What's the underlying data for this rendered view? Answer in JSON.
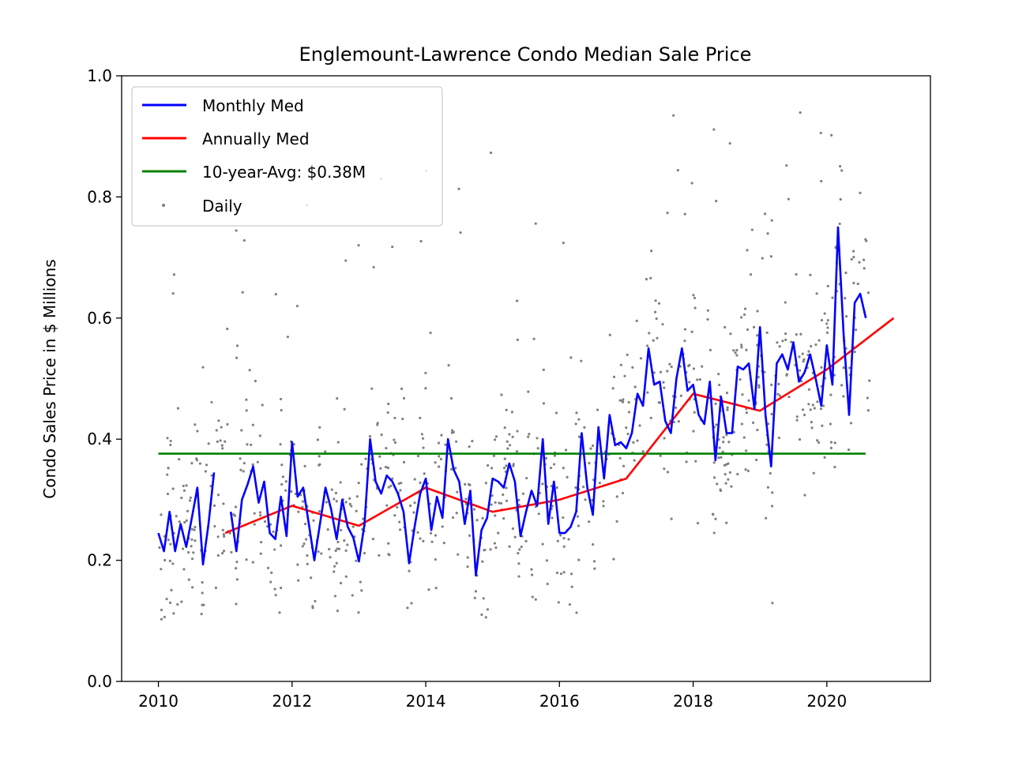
{
  "chart_data": {
    "type": "line",
    "title": "Englemount-Lawrence Condo Median Sale Price",
    "xlabel": "",
    "ylabel": "Condo Sales Price in $ Millions",
    "xlim": [
      2009.45,
      2021.55
    ],
    "ylim": [
      0.0,
      1.0
    ],
    "x_ticks": [
      2010,
      2012,
      2014,
      2016,
      2018,
      2020
    ],
    "y_ticks": [
      0.0,
      0.2,
      0.4,
      0.6,
      0.8,
      1.0
    ],
    "x_tick_labels": [
      "2010",
      "2012",
      "2014",
      "2016",
      "2018",
      "2020"
    ],
    "y_tick_labels": [
      "0.0",
      "0.2",
      "0.4",
      "0.6",
      "0.8",
      "1.0"
    ],
    "grid": false,
    "legend_position": "top-left",
    "series": [
      {
        "name": "Monthly Med",
        "type": "line",
        "color": "#0000ff",
        "x": [
          2010.0,
          2010.083,
          2010.167,
          2010.25,
          2010.333,
          2010.417,
          2010.5,
          2010.583,
          2010.667,
          2010.75,
          2010.833,
          2010.917,
          2011.083,
          2011.167,
          2011.25,
          2011.333,
          2011.417,
          2011.5,
          2011.583,
          2011.667,
          2011.75,
          2011.833,
          2011.917,
          2012.0,
          2012.083,
          2012.167,
          2012.25,
          2012.333,
          2012.417,
          2012.5,
          2012.583,
          2012.667,
          2012.75,
          2012.833,
          2012.917,
          2013.0,
          2013.083,
          2013.167,
          2013.25,
          2013.333,
          2013.417,
          2013.5,
          2013.583,
          2013.667,
          2013.75,
          2013.833,
          2013.917,
          2014.0,
          2014.083,
          2014.167,
          2014.25,
          2014.333,
          2014.417,
          2014.5,
          2014.583,
          2014.667,
          2014.75,
          2014.833,
          2014.917,
          2015.0,
          2015.083,
          2015.167,
          2015.25,
          2015.333,
          2015.417,
          2015.5,
          2015.583,
          2015.667,
          2015.75,
          2015.833,
          2015.917,
          2016.0,
          2016.083,
          2016.167,
          2016.25,
          2016.333,
          2016.417,
          2016.5,
          2016.583,
          2016.667,
          2016.75,
          2016.833,
          2016.917,
          2017.0,
          2017.083,
          2017.167,
          2017.25,
          2017.333,
          2017.417,
          2017.5,
          2017.583,
          2017.667,
          2017.75,
          2017.833,
          2017.917,
          2018.0,
          2018.083,
          2018.167,
          2018.25,
          2018.333,
          2018.417,
          2018.5,
          2018.583,
          2018.667,
          2018.75,
          2018.833,
          2018.917,
          2019.0,
          2019.083,
          2019.167,
          2019.25,
          2019.333,
          2019.417,
          2019.5,
          2019.583,
          2019.667,
          2019.75,
          2019.833,
          2019.917,
          2020.0,
          2020.083,
          2020.167,
          2020.25,
          2020.333,
          2020.417,
          2020.5,
          2020.583
        ],
        "values": [
          0.245,
          0.215,
          0.28,
          0.215,
          0.26,
          0.222,
          0.27,
          0.32,
          0.193,
          0.26,
          0.345,
          null,
          0.28,
          0.215,
          0.3,
          0.325,
          0.355,
          0.295,
          0.33,
          0.245,
          0.235,
          0.305,
          0.24,
          0.395,
          0.305,
          0.32,
          0.26,
          0.2,
          0.26,
          0.32,
          0.285,
          0.235,
          0.3,
          0.255,
          0.237,
          0.198,
          0.26,
          0.4,
          0.33,
          0.31,
          0.34,
          0.33,
          0.31,
          0.28,
          0.195,
          0.255,
          0.31,
          0.335,
          0.25,
          0.305,
          0.27,
          0.4,
          0.35,
          0.33,
          0.26,
          0.315,
          0.175,
          0.25,
          0.27,
          0.335,
          0.33,
          0.32,
          0.36,
          0.33,
          0.24,
          0.28,
          0.315,
          0.29,
          0.4,
          0.26,
          0.33,
          0.245,
          0.245,
          0.255,
          0.28,
          0.41,
          0.32,
          0.275,
          0.42,
          0.335,
          0.44,
          0.39,
          0.395,
          0.385,
          0.41,
          0.475,
          0.455,
          0.55,
          0.49,
          0.495,
          0.43,
          0.41,
          0.5,
          0.55,
          0.48,
          0.49,
          0.44,
          0.425,
          0.495,
          0.365,
          0.47,
          0.41,
          0.41,
          0.52,
          0.515,
          0.525,
          0.45,
          0.585,
          0.44,
          0.355,
          0.525,
          0.54,
          0.515,
          0.56,
          0.495,
          0.51,
          0.54,
          0.5,
          0.455,
          0.555,
          0.49,
          0.75,
          0.575,
          0.44,
          0.625,
          0.64,
          0.6
        ]
      },
      {
        "name": "Annually Med",
        "type": "line",
        "color": "#ff0000",
        "x": [
          2011,
          2012,
          2013,
          2014,
          2015,
          2016,
          2017,
          2018,
          2019,
          2020,
          2021
        ],
        "values": [
          0.245,
          0.29,
          0.257,
          0.32,
          0.28,
          0.3,
          0.335,
          0.475,
          0.447,
          0.515,
          0.6
        ]
      },
      {
        "name": "10-year-Avg: $0.38M",
        "type": "line",
        "color": "#008000",
        "x": [
          2010,
          2020.58
        ],
        "values": [
          0.376,
          0.376
        ]
      },
      {
        "name": "Daily",
        "type": "scatter",
        "color": "#808080",
        "x_range": [
          2010.0,
          2020.65
        ],
        "values": [],
        "note_free": true
      }
    ]
  }
}
